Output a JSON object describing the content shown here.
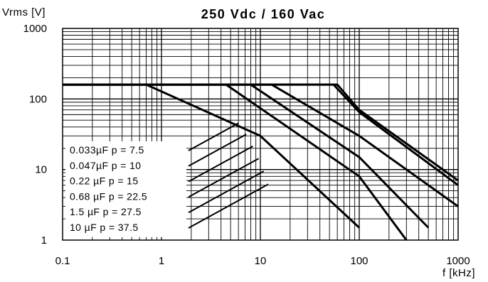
{
  "chart_data": {
    "type": "line",
    "title": "250 Vdc / 160 Vac",
    "xlabel": "f [kHz]",
    "ylabel": "Vrms [V]",
    "x_scale": "log",
    "y_scale": "log",
    "xlim": [
      0.1,
      1000
    ],
    "ylim": [
      1,
      1000
    ],
    "x_ticks": [
      "0.1",
      "1",
      "10",
      "100",
      "1000"
    ],
    "y_ticks": [
      "1",
      "10",
      "100",
      "1000"
    ],
    "grid": true,
    "legend_position": "bottom-left",
    "series": [
      {
        "name": "0.033µF p = 7.5",
        "x": [
          0.1,
          60,
          100,
          1000
        ],
        "y": [
          160,
          160,
          70,
          7
        ]
      },
      {
        "name": "0.047µF p = 10",
        "x": [
          0.1,
          55,
          100,
          1000
        ],
        "y": [
          160,
          160,
          65,
          6
        ]
      },
      {
        "name": "0.22  µF p = 15",
        "x": [
          0.1,
          13,
          100,
          1000
        ],
        "y": [
          160,
          160,
          30,
          3
        ]
      },
      {
        "name": "0.68  µF p = 22.5",
        "x": [
          0.1,
          8,
          100,
          500
        ],
        "y": [
          160,
          160,
          15,
          1.5
        ]
      },
      {
        "name": "1.5   µF p = 27.5",
        "x": [
          0.1,
          4.5,
          100,
          300
        ],
        "y": [
          160,
          160,
          8,
          1
        ]
      },
      {
        "name": "10    µF p = 37.5",
        "x": [
          0.1,
          0.7,
          10,
          100
        ],
        "y": [
          160,
          160,
          30,
          1.5
        ]
      }
    ]
  }
}
